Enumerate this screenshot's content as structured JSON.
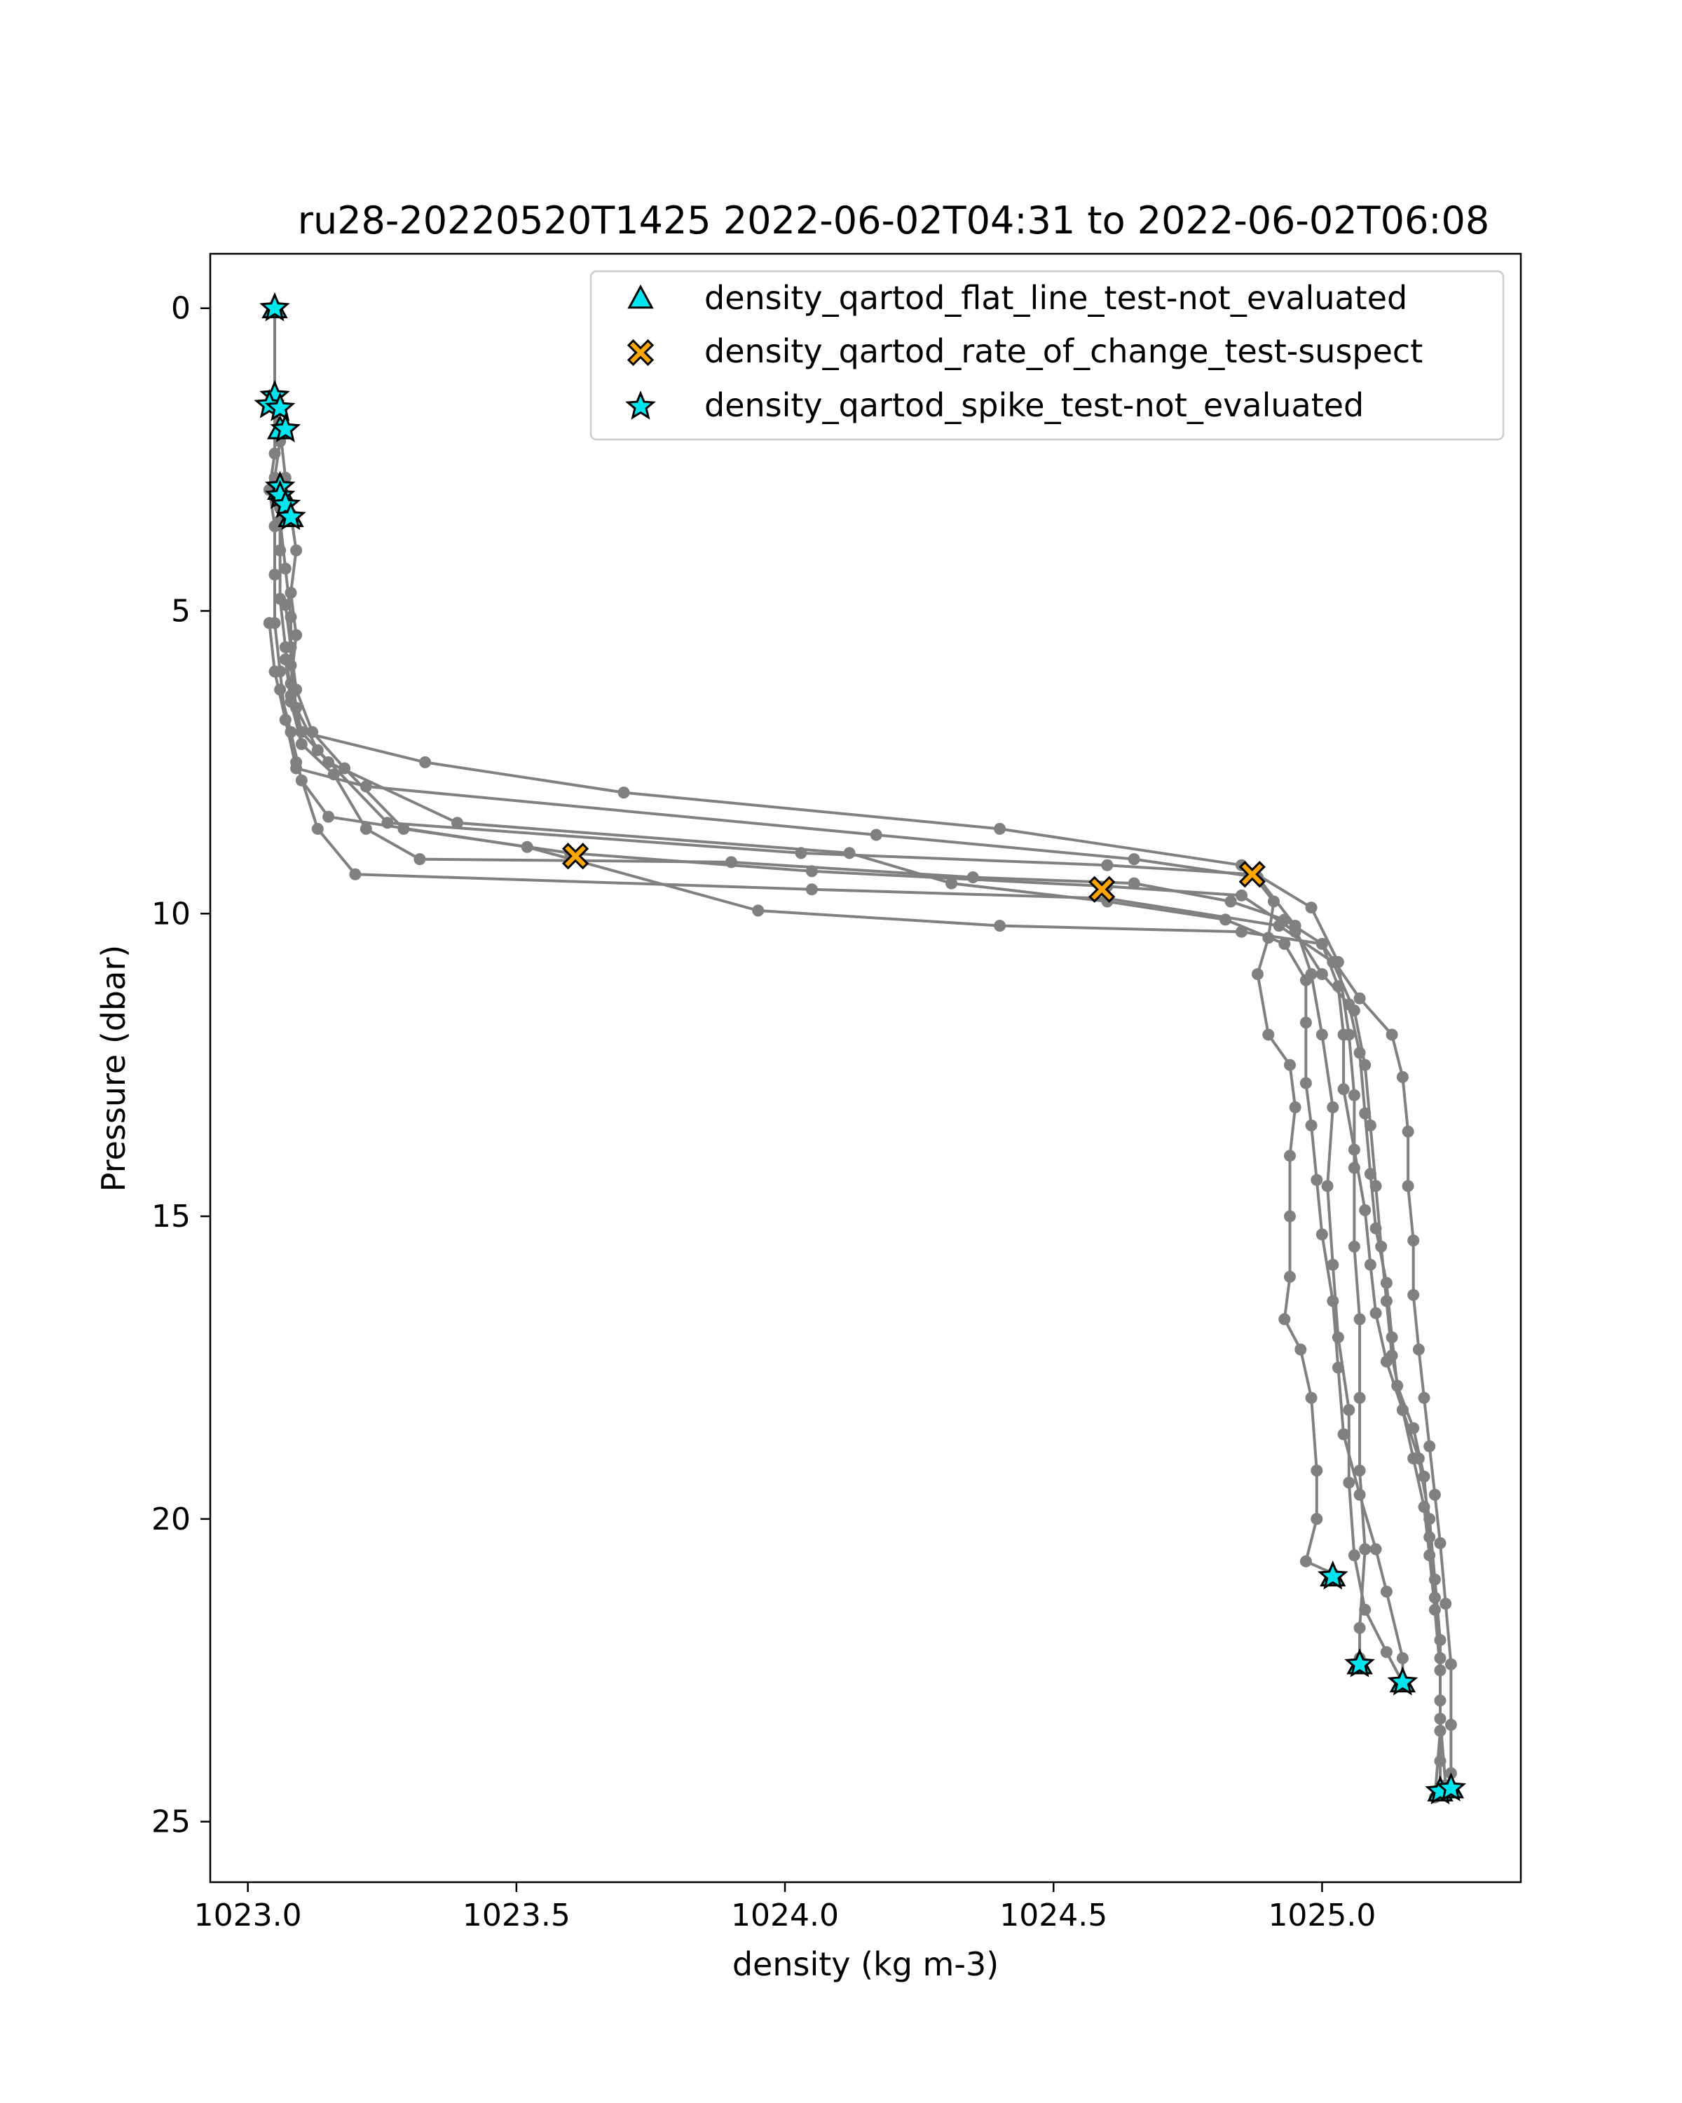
{
  "chart_data": {
    "type": "line",
    "title": "ru28-20220520T1425 2022-06-02T04:31 to 2022-06-02T06:08",
    "xlabel": "density (kg m-3)",
    "ylabel": "Pressure (dbar)",
    "xlim": [
      1022.93,
      1025.37
    ],
    "ylim": [
      26.0,
      -0.9
    ],
    "y_inverted": true,
    "grid": false,
    "x_ticks": [
      1023.0,
      1023.5,
      1024.0,
      1024.5,
      1025.0
    ],
    "x_tick_labels": [
      "1023.0",
      "1023.5",
      "1024.0",
      "1024.5",
      "1025.0"
    ],
    "y_ticks": [
      0,
      5,
      10,
      15,
      20,
      25
    ],
    "y_tick_labels": [
      "0",
      "5",
      "10",
      "15",
      "20",
      "25"
    ],
    "legend_position": "top-right",
    "colors": {
      "profile": "#808080",
      "not_evaluated": "#00e5ee",
      "suspect": "#ffa500",
      "edge": "#000000"
    },
    "legend": [
      {
        "label": "density_qartod_flat_line_test-not_evaluated",
        "marker": "triangle",
        "color": "#00e5ee"
      },
      {
        "label": "density_qartod_rate_of_change_test-suspect",
        "marker": "x",
        "color": "#ffa500"
      },
      {
        "label": "density_qartod_spike_test-not_evaluated",
        "marker": "star",
        "color": "#00e5ee"
      }
    ],
    "series": [
      {
        "points": [
          [
            1023.05,
            0.0
          ],
          [
            1023.05,
            1.5
          ],
          [
            1023.06,
            2.2
          ],
          [
            1023.05,
            2.8
          ],
          [
            1023.06,
            3.3
          ],
          [
            1023.06,
            4.0
          ],
          [
            1023.06,
            4.8
          ],
          [
            1023.07,
            5.6
          ],
          [
            1023.08,
            6.4
          ],
          [
            1023.1,
            7.0
          ],
          [
            1023.33,
            7.5
          ],
          [
            1023.7,
            8.0
          ],
          [
            1024.4,
            8.6
          ],
          [
            1024.85,
            9.2
          ],
          [
            1024.98,
            9.9
          ],
          [
            1025.03,
            10.8
          ],
          [
            1025.05,
            12.0
          ],
          [
            1025.06,
            13.0
          ],
          [
            1025.06,
            14.2
          ],
          [
            1025.06,
            15.5
          ],
          [
            1025.07,
            16.7
          ],
          [
            1025.07,
            18.0
          ],
          [
            1025.07,
            19.2
          ],
          [
            1025.08,
            20.5
          ],
          [
            1025.07,
            21.8
          ],
          [
            1025.07,
            22.3
          ]
        ]
      },
      {
        "points": [
          [
            1023.05,
            1.6
          ],
          [
            1023.05,
            2.4
          ],
          [
            1023.04,
            3.0
          ],
          [
            1023.05,
            3.6
          ],
          [
            1023.05,
            4.4
          ],
          [
            1023.05,
            5.2
          ],
          [
            1023.06,
            6.0
          ],
          [
            1023.07,
            6.8
          ],
          [
            1023.09,
            7.6
          ],
          [
            1023.22,
            7.9
          ],
          [
            1024.17,
            8.7
          ],
          [
            1024.65,
            9.1
          ],
          [
            1024.88,
            9.4
          ],
          [
            1024.95,
            10.2
          ],
          [
            1024.98,
            11.0
          ],
          [
            1025.0,
            12.0
          ],
          [
            1025.02,
            13.2
          ],
          [
            1025.01,
            14.5
          ],
          [
            1025.02,
            15.8
          ],
          [
            1025.03,
            17.0
          ],
          [
            1025.05,
            18.2
          ],
          [
            1025.05,
            19.4
          ],
          [
            1025.06,
            20.6
          ],
          [
            1025.08,
            21.5
          ],
          [
            1025.12,
            22.2
          ],
          [
            1025.15,
            22.7
          ]
        ]
      },
      {
        "points": [
          [
            1023.06,
            2.0
          ],
          [
            1023.07,
            2.8
          ],
          [
            1023.06,
            3.5
          ],
          [
            1023.07,
            4.3
          ],
          [
            1023.08,
            5.1
          ],
          [
            1023.08,
            5.9
          ],
          [
            1023.09,
            6.6
          ],
          [
            1023.13,
            7.3
          ],
          [
            1023.26,
            8.5
          ],
          [
            1024.03,
            9.0
          ],
          [
            1024.6,
            9.2
          ],
          [
            1024.87,
            9.35
          ],
          [
            1024.91,
            9.8
          ],
          [
            1024.9,
            10.4
          ],
          [
            1024.88,
            11.0
          ],
          [
            1024.9,
            12.0
          ],
          [
            1024.94,
            12.5
          ],
          [
            1024.95,
            13.2
          ],
          [
            1024.94,
            14.0
          ],
          [
            1024.94,
            15.0
          ],
          [
            1024.94,
            16.0
          ],
          [
            1024.93,
            16.7
          ],
          [
            1024.96,
            17.2
          ],
          [
            1024.98,
            18.0
          ],
          [
            1024.99,
            19.2
          ],
          [
            1024.99,
            20.0
          ],
          [
            1024.97,
            20.7
          ],
          [
            1025.02,
            20.9
          ]
        ]
      },
      {
        "points": [
          [
            1023.08,
            3.4
          ],
          [
            1023.09,
            4.0
          ],
          [
            1023.08,
            4.7
          ],
          [
            1023.09,
            5.4
          ],
          [
            1023.08,
            6.2
          ],
          [
            1023.1,
            7.0
          ],
          [
            1023.15,
            7.5
          ],
          [
            1023.39,
            8.5
          ],
          [
            1024.12,
            9.0
          ],
          [
            1024.31,
            9.5
          ],
          [
            1024.6,
            9.8
          ],
          [
            1024.82,
            10.1
          ],
          [
            1024.93,
            10.5
          ],
          [
            1024.97,
            11.1
          ],
          [
            1024.97,
            11.8
          ],
          [
            1024.97,
            12.8
          ],
          [
            1024.98,
            13.5
          ],
          [
            1024.99,
            14.4
          ],
          [
            1025.0,
            15.3
          ],
          [
            1025.02,
            16.4
          ],
          [
            1025.03,
            17.5
          ],
          [
            1025.04,
            18.6
          ],
          [
            1025.07,
            19.6
          ],
          [
            1025.1,
            20.5
          ],
          [
            1025.12,
            21.2
          ],
          [
            1025.15,
            22.3
          ],
          [
            1025.15,
            22.7
          ]
        ]
      },
      {
        "points": [
          [
            1023.07,
            4.9
          ],
          [
            1023.08,
            5.6
          ],
          [
            1023.09,
            6.3
          ],
          [
            1023.12,
            7.0
          ],
          [
            1023.18,
            7.6
          ],
          [
            1023.29,
            8.6
          ],
          [
            1023.6,
            9.0
          ],
          [
            1024.05,
            9.3
          ],
          [
            1024.6,
            9.55
          ],
          [
            1024.85,
            9.7
          ],
          [
            1024.95,
            10.3
          ],
          [
            1025.0,
            11.0
          ],
          [
            1025.05,
            11.5
          ],
          [
            1025.07,
            12.3
          ],
          [
            1025.08,
            13.3
          ],
          [
            1025.09,
            14.3
          ],
          [
            1025.1,
            15.2
          ],
          [
            1025.12,
            16.1
          ],
          [
            1025.13,
            17.0
          ],
          [
            1025.14,
            17.8
          ],
          [
            1025.17,
            18.5
          ],
          [
            1025.19,
            19.3
          ],
          [
            1025.2,
            20.3
          ],
          [
            1025.21,
            21.3
          ],
          [
            1025.22,
            22.3
          ],
          [
            1025.22,
            23.3
          ],
          [
            1025.23,
            24.4
          ]
        ]
      },
      {
        "points": [
          [
            1023.07,
            5.8
          ],
          [
            1023.08,
            6.5
          ],
          [
            1023.1,
            7.2
          ],
          [
            1023.16,
            7.7
          ],
          [
            1023.22,
            8.6
          ],
          [
            1023.32,
            9.1
          ],
          [
            1023.9,
            9.15
          ],
          [
            1024.35,
            9.4
          ],
          [
            1024.65,
            9.5
          ],
          [
            1024.83,
            9.8
          ],
          [
            1024.93,
            10.1
          ],
          [
            1025.0,
            10.5
          ],
          [
            1025.03,
            11.2
          ],
          [
            1025.04,
            12.0
          ],
          [
            1025.04,
            12.9
          ],
          [
            1025.06,
            13.9
          ],
          [
            1025.08,
            14.9
          ],
          [
            1025.09,
            15.8
          ],
          [
            1025.1,
            16.6
          ],
          [
            1025.12,
            17.4
          ],
          [
            1025.15,
            18.2
          ],
          [
            1025.18,
            19.0
          ],
          [
            1025.2,
            20.0
          ],
          [
            1025.21,
            21.0
          ],
          [
            1025.22,
            22.0
          ],
          [
            1025.22,
            23.0
          ],
          [
            1025.22,
            24.0
          ],
          [
            1025.22,
            24.5
          ]
        ]
      },
      {
        "points": [
          [
            1023.04,
            5.2
          ],
          [
            1023.05,
            6.0
          ],
          [
            1023.07,
            6.8
          ],
          [
            1023.09,
            7.5
          ],
          [
            1023.13,
            8.6
          ],
          [
            1023.2,
            9.35
          ],
          [
            1024.05,
            9.6
          ],
          [
            1024.6,
            9.75
          ],
          [
            1024.92,
            10.2
          ],
          [
            1025.02,
            10.8
          ],
          [
            1025.06,
            11.6
          ],
          [
            1025.08,
            12.5
          ],
          [
            1025.09,
            13.5
          ],
          [
            1025.1,
            14.5
          ],
          [
            1025.11,
            15.5
          ],
          [
            1025.12,
            16.4
          ],
          [
            1025.13,
            17.3
          ],
          [
            1025.15,
            18.2
          ],
          [
            1025.17,
            19.0
          ],
          [
            1025.19,
            19.8
          ],
          [
            1025.2,
            20.6
          ],
          [
            1025.21,
            21.5
          ],
          [
            1025.22,
            22.5
          ],
          [
            1025.22,
            23.5
          ],
          [
            1025.21,
            24.6
          ]
        ]
      },
      {
        "points": [
          [
            1023.06,
            6.3
          ],
          [
            1023.08,
            7.0
          ],
          [
            1023.1,
            7.8
          ],
          [
            1023.15,
            8.4
          ],
          [
            1023.52,
            8.9
          ],
          [
            1023.95,
            9.95
          ],
          [
            1024.4,
            10.2
          ],
          [
            1024.85,
            10.3
          ],
          [
            1025.0,
            10.5
          ],
          [
            1025.07,
            11.4
          ],
          [
            1025.13,
            12.0
          ],
          [
            1025.15,
            12.7
          ],
          [
            1025.16,
            13.6
          ],
          [
            1025.16,
            14.5
          ],
          [
            1025.17,
            15.4
          ],
          [
            1025.17,
            16.3
          ],
          [
            1025.18,
            17.2
          ],
          [
            1025.19,
            18.0
          ],
          [
            1025.2,
            18.8
          ],
          [
            1025.21,
            19.6
          ],
          [
            1025.22,
            20.4
          ],
          [
            1025.23,
            21.4
          ],
          [
            1025.24,
            22.4
          ],
          [
            1025.24,
            23.4
          ],
          [
            1025.24,
            24.2
          ],
          [
            1025.23,
            24.5
          ]
        ]
      }
    ],
    "flags": [
      {
        "name": "spike-not-evaluated",
        "marker": "star",
        "color": "#00e5ee",
        "points": [
          [
            1023.05,
            0.0
          ],
          [
            1023.05,
            1.45
          ],
          [
            1023.04,
            1.6
          ],
          [
            1023.06,
            1.65
          ],
          [
            1023.07,
            2.0
          ],
          [
            1023.06,
            2.95
          ],
          [
            1023.06,
            3.1
          ],
          [
            1023.07,
            3.25
          ],
          [
            1023.08,
            3.45
          ],
          [
            1025.02,
            20.95
          ],
          [
            1025.07,
            22.4
          ],
          [
            1025.15,
            22.7
          ],
          [
            1025.22,
            24.5
          ],
          [
            1025.24,
            24.45
          ]
        ]
      },
      {
        "name": "rate-of-change-suspect",
        "marker": "x",
        "color": "#ffa500",
        "points": [
          [
            1023.61,
            9.05
          ],
          [
            1024.59,
            9.6
          ],
          [
            1024.87,
            9.35
          ]
        ]
      },
      {
        "name": "flat-line-not-evaluated",
        "marker": "triangle",
        "color": "#00e5ee",
        "points": [
          [
            1023.05,
            0.0
          ],
          [
            1023.05,
            1.5
          ],
          [
            1023.06,
            2.0
          ],
          [
            1023.06,
            3.0
          ],
          [
            1023.08,
            3.45
          ],
          [
            1025.02,
            20.95
          ],
          [
            1025.07,
            22.4
          ],
          [
            1025.15,
            22.7
          ],
          [
            1025.22,
            24.5
          ],
          [
            1025.24,
            24.45
          ]
        ]
      }
    ]
  }
}
